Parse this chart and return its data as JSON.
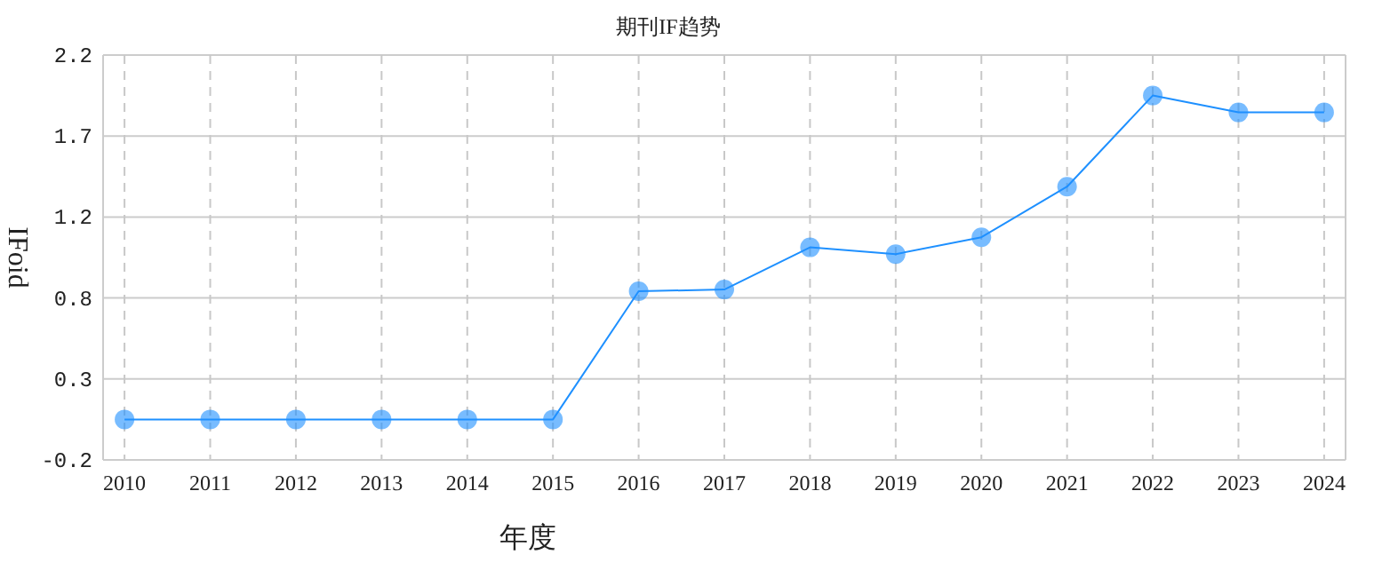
{
  "chart_data": {
    "type": "line",
    "title": "期刊IF趋势",
    "xlabel": "年度",
    "ylabel": "IFoid",
    "categories": [
      "2010",
      "2011",
      "2012",
      "2013",
      "2014",
      "2015",
      "2016",
      "2017",
      "2018",
      "2019",
      "2020",
      "2021",
      "2022",
      "2023",
      "2024"
    ],
    "series": [
      {
        "color": "#1e90ff",
        "values": [
          0.04,
          0.04,
          0.04,
          0.04,
          0.04,
          0.04,
          0.8,
          0.81,
          1.06,
          1.02,
          1.12,
          1.42,
          1.96,
          1.86,
          1.86
        ]
      }
    ],
    "ylim": [
      -0.2,
      2.2
    ],
    "yticks": [
      -0.2,
      {
        "value": 0.28,
        "label": "0.3"
      },
      {
        "value": 0.76,
        "label": "0.8"
      },
      {
        "value": 1.24,
        "label": "1.2"
      },
      {
        "value": 1.72,
        "label": "1.7"
      },
      2.2
    ],
    "grid": true,
    "marker": "circle",
    "line_style": "solid"
  }
}
